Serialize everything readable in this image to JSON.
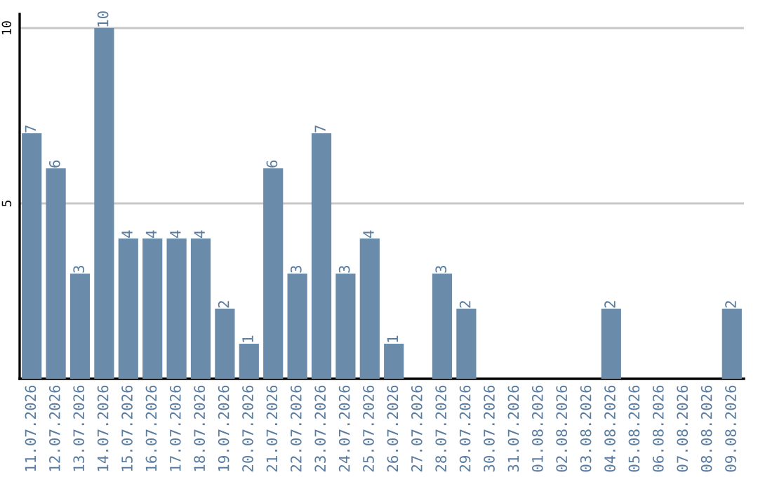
{
  "chart_data": {
    "type": "bar",
    "categories": [
      "11.07.2026",
      "12.07.2026",
      "13.07.2026",
      "14.07.2026",
      "15.07.2026",
      "16.07.2026",
      "17.07.2026",
      "18.07.2026",
      "19.07.2026",
      "20.07.2026",
      "21.07.2026",
      "22.07.2026",
      "23.07.2026",
      "24.07.2026",
      "25.07.2026",
      "26.07.2026",
      "27.07.2026",
      "28.07.2026",
      "29.07.2026",
      "30.07.2026",
      "31.07.2026",
      "01.08.2026",
      "02.08.2026",
      "03.08.2026",
      "04.08.2026",
      "05.08.2026",
      "06.08.2026",
      "07.08.2026",
      "08.08.2026",
      "09.08.2026"
    ],
    "values": [
      7,
      6,
      3,
      10,
      4,
      4,
      4,
      4,
      2,
      1,
      6,
      3,
      7,
      3,
      4,
      1,
      0,
      3,
      2,
      0,
      0,
      0,
      0,
      0,
      2,
      0,
      0,
      0,
      0,
      2
    ],
    "value_labels": [
      "7",
      "6",
      "3",
      "10",
      "4",
      "4",
      "4",
      "4",
      "2",
      "1",
      "6",
      "3",
      "7",
      "3",
      "4",
      "1",
      null,
      "3",
      "2",
      null,
      null,
      null,
      null,
      null,
      "2",
      null,
      null,
      null,
      null,
      "2"
    ],
    "color": "#6a8caa",
    "ylim": [
      0,
      10.4
    ],
    "yticks": [
      5,
      10
    ],
    "grid": "y",
    "legend": false
  }
}
